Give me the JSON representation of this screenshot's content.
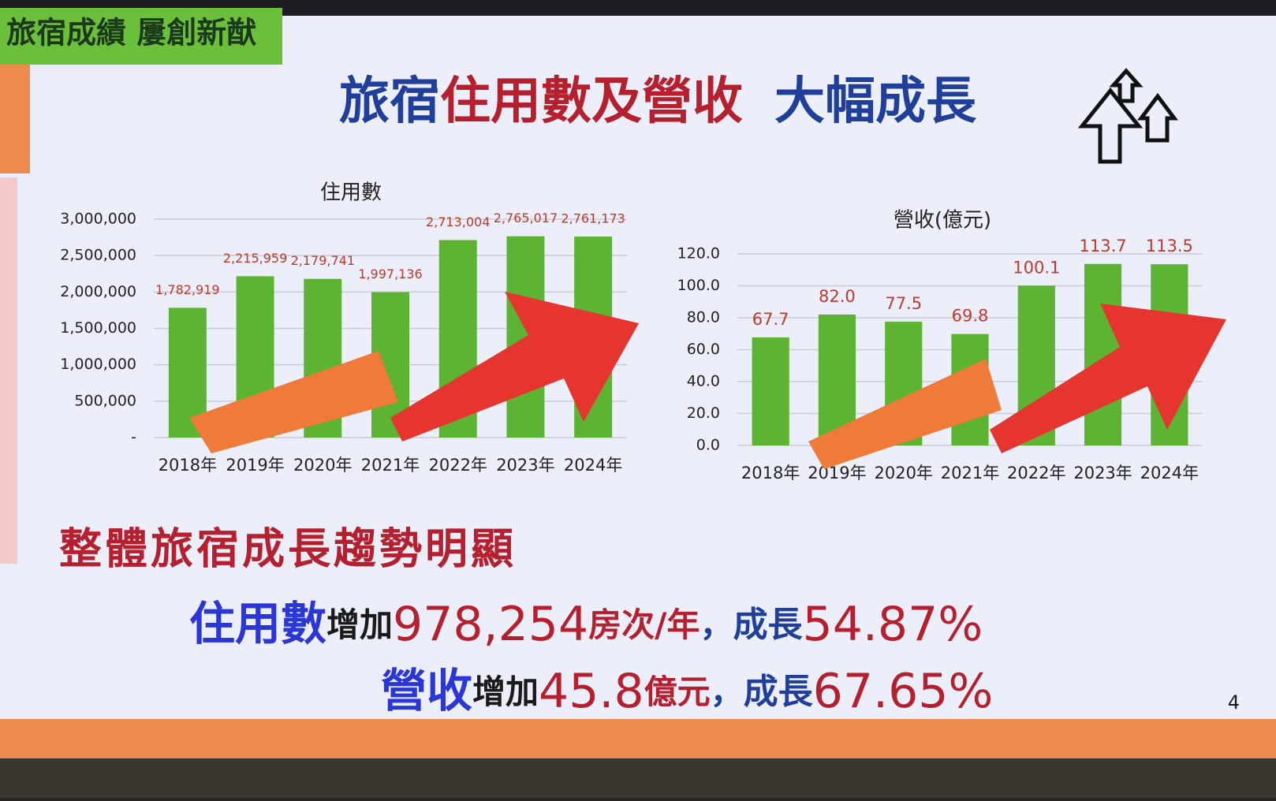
{
  "header": {
    "tag": "旅宿成績 屢創新猷",
    "title": [
      "旅宿",
      "住用數及營收",
      "大幅成長"
    ]
  },
  "chart_data": [
    {
      "type": "bar",
      "title": "住用數",
      "categories": [
        "2018年",
        "2019年",
        "2020年",
        "2021年",
        "2022年",
        "2023年",
        "2024年"
      ],
      "values": [
        1782919,
        2215959,
        2179741,
        1997136,
        2713004,
        2765017,
        2761173
      ],
      "value_labels": [
        "1,782,919",
        "2,215,959",
        "2,179,741",
        "1,997,136",
        "2,713,004",
        "2,765,017",
        "2,761,173"
      ],
      "color": "#5db332",
      "ylim": [
        0,
        3000000
      ],
      "yticks": [
        {
          "value": 0,
          "label": "-"
        },
        {
          "value": 500000,
          "label": "500,000"
        },
        {
          "value": 1000000,
          "label": "1,000,000"
        },
        {
          "value": 1500000,
          "label": "1,500,000"
        },
        {
          "value": 2000000,
          "label": "2,000,000"
        },
        {
          "value": 2500000,
          "label": "2,500,000"
        },
        {
          "value": 3000000,
          "label": "3,000,000"
        }
      ],
      "grid": true
    },
    {
      "type": "bar",
      "title": "營收(億元)",
      "categories": [
        "2018年",
        "2019年",
        "2020年",
        "2021年",
        "2022年",
        "2023年",
        "2024年"
      ],
      "values": [
        67.7,
        82.0,
        77.5,
        69.8,
        100.1,
        113.7,
        113.5
      ],
      "value_labels": [
        "67.7",
        "82.0",
        "77.5",
        "69.8",
        "100.1",
        "113.7",
        "113.5"
      ],
      "color": "#5db332",
      "ylim": [
        0,
        120
      ],
      "yticks": [
        {
          "value": 0,
          "label": "0.0"
        },
        {
          "value": 20,
          "label": "20.0"
        },
        {
          "value": 40,
          "label": "40.0"
        },
        {
          "value": 60,
          "label": "60.0"
        },
        {
          "value": 80,
          "label": "80.0"
        },
        {
          "value": 100,
          "label": "100.0"
        },
        {
          "value": 120,
          "label": "120.0"
        }
      ],
      "grid": true
    }
  ],
  "summary": {
    "heading": "整體旅宿成長趨勢明顯",
    "line1": [
      "住用數",
      "增加",
      "978,254",
      "房次/年",
      "，",
      "成長",
      "54.87%"
    ],
    "line2": [
      "營收",
      "增加",
      "45.8",
      "億元",
      "，",
      "成長",
      "67.65%"
    ]
  },
  "page_number": "4"
}
